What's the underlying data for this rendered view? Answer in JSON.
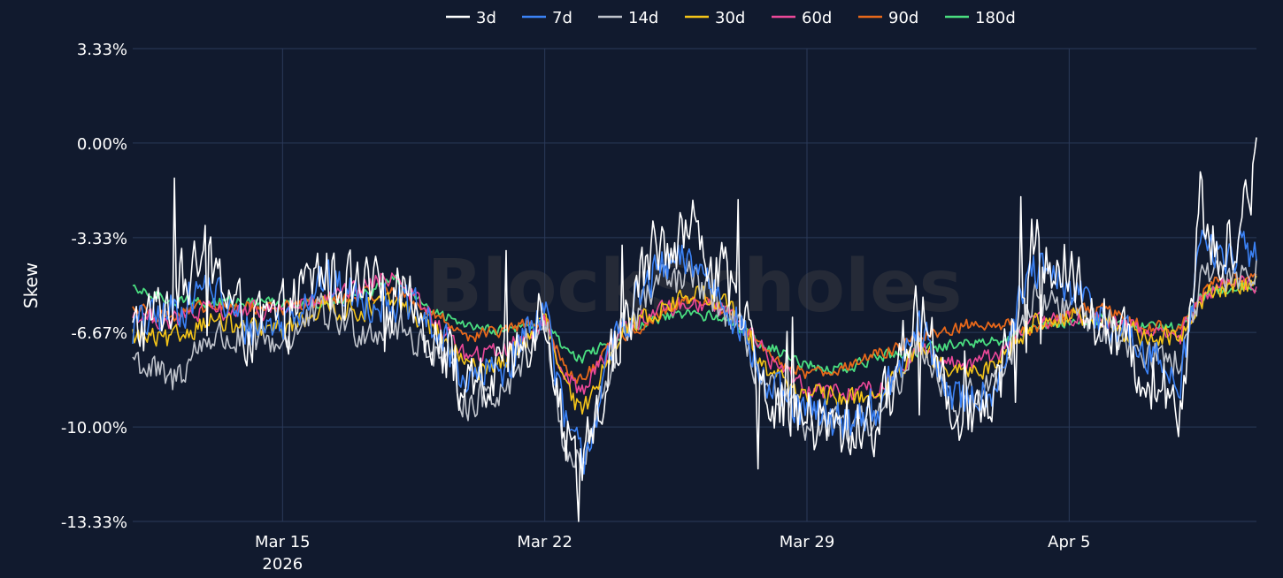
{
  "colors": {
    "background": "#111a2e",
    "grid": "#2b3a5a",
    "text": "#ffffff",
    "watermark": "#4a4a4a"
  },
  "watermark": "BlockScholes",
  "chart_data": {
    "type": "line",
    "title": "",
    "xlabel": "",
    "ylabel": "Skew",
    "x_range": [
      "2026-03-11",
      "2026-04-09"
    ],
    "y_range": [
      -13.33,
      3.33
    ],
    "grid": true,
    "legend_position": "top-center",
    "x_ticks": [
      {
        "date": "2026-03-15",
        "label": "Mar 15",
        "sublabel": "2026"
      },
      {
        "date": "2026-03-22",
        "label": "Mar 22",
        "sublabel": ""
      },
      {
        "date": "2026-03-29",
        "label": "Mar 29",
        "sublabel": ""
      },
      {
        "date": "2026-04-05",
        "label": "Apr 5",
        "sublabel": ""
      }
    ],
    "y_ticks": [
      {
        "value": 3.33,
        "label": "3.33%"
      },
      {
        "value": 0,
        "label": "0.00%"
      },
      {
        "value": -3.33,
        "label": "-3.33%"
      },
      {
        "value": -6.67,
        "label": "-6.67%"
      },
      {
        "value": -10,
        "label": "-10.00%"
      },
      {
        "value": -13.33,
        "label": "-13.33%"
      }
    ],
    "series": [
      {
        "name": "3d",
        "color": "#ffffff",
        "width": 1.6,
        "noise": 1.1,
        "points": [
          [
            "2026-03-11",
            -6.8
          ],
          [
            "2026-03-12",
            -5.5
          ],
          [
            "2026-03-13",
            -4.0
          ],
          [
            "2026-03-14",
            -6.5
          ],
          [
            "2026-03-15",
            -6.3
          ],
          [
            "2026-03-16",
            -4.5
          ],
          [
            "2026-03-17",
            -5.3
          ],
          [
            "2026-03-18",
            -5.4
          ],
          [
            "2026-03-19",
            -6.5
          ],
          [
            "2026-03-20",
            -9.0
          ],
          [
            "2026-03-21",
            -8.0
          ],
          [
            "2026-03-22",
            -5.5
          ],
          [
            "2026-03-22T12:00",
            -10.0
          ],
          [
            "2026-03-23",
            -11.8
          ],
          [
            "2026-03-24",
            -6.5
          ],
          [
            "2026-03-25",
            -3.5
          ],
          [
            "2026-03-26",
            -3.0
          ],
          [
            "2026-03-27",
            -5.5
          ],
          [
            "2026-03-28",
            -8.8
          ],
          [
            "2026-03-29",
            -9.8
          ],
          [
            "2026-03-30",
            -10.2
          ],
          [
            "2026-03-31",
            -9.6
          ],
          [
            "2026-04-01",
            -5.5
          ],
          [
            "2026-04-02",
            -9.5
          ],
          [
            "2026-04-03",
            -9.0
          ],
          [
            "2026-04-04",
            -3.5
          ],
          [
            "2026-04-05",
            -4.5
          ],
          [
            "2026-04-06",
            -6.5
          ],
          [
            "2026-04-07",
            -8.0
          ],
          [
            "2026-04-08",
            -9.0
          ],
          [
            "2026-04-08T12:00",
            -2.0
          ],
          [
            "2026-04-09",
            -4.5
          ],
          [
            "2026-04-10",
            -1.0
          ]
        ]
      },
      {
        "name": "7d",
        "color": "#3b82f6",
        "width": 1.6,
        "noise": 0.7,
        "points": [
          [
            "2026-03-11",
            -6.5
          ],
          [
            "2026-03-12",
            -6.0
          ],
          [
            "2026-03-13",
            -5.0
          ],
          [
            "2026-03-14",
            -6.5
          ],
          [
            "2026-03-15",
            -6.3
          ],
          [
            "2026-03-16",
            -4.8
          ],
          [
            "2026-03-17",
            -5.5
          ],
          [
            "2026-03-18",
            -5.5
          ],
          [
            "2026-03-19",
            -6.5
          ],
          [
            "2026-03-20",
            -8.5
          ],
          [
            "2026-03-21",
            -7.8
          ],
          [
            "2026-03-22",
            -5.5
          ],
          [
            "2026-03-22T12:00",
            -9.8
          ],
          [
            "2026-03-23",
            -11.2
          ],
          [
            "2026-03-24",
            -6.5
          ],
          [
            "2026-03-25",
            -4.5
          ],
          [
            "2026-03-26",
            -4.2
          ],
          [
            "2026-03-27",
            -5.8
          ],
          [
            "2026-03-28",
            -8.8
          ],
          [
            "2026-03-29",
            -9.6
          ],
          [
            "2026-03-30",
            -9.8
          ],
          [
            "2026-03-31",
            -9.2
          ],
          [
            "2026-04-01",
            -6.5
          ],
          [
            "2026-04-02",
            -9.2
          ],
          [
            "2026-04-03",
            -8.5
          ],
          [
            "2026-04-04",
            -4.5
          ],
          [
            "2026-04-05",
            -5.2
          ],
          [
            "2026-04-06",
            -6.2
          ],
          [
            "2026-04-07",
            -7.5
          ],
          [
            "2026-04-08",
            -8.2
          ],
          [
            "2026-04-08T12:00",
            -3.5
          ],
          [
            "2026-04-09",
            -4.0
          ],
          [
            "2026-04-10",
            -3.8
          ]
        ]
      },
      {
        "name": "14d",
        "color": "#c0c4cc",
        "width": 1.6,
        "noise": 0.6,
        "points": [
          [
            "2026-03-11",
            -7.5
          ],
          [
            "2026-03-12",
            -8.5
          ],
          [
            "2026-03-13",
            -6.8
          ],
          [
            "2026-03-14",
            -7.0
          ],
          [
            "2026-03-15",
            -7.0
          ],
          [
            "2026-03-16",
            -6.0
          ],
          [
            "2026-03-17",
            -6.5
          ],
          [
            "2026-03-18",
            -6.5
          ],
          [
            "2026-03-19",
            -7.2
          ],
          [
            "2026-03-20",
            -9.2
          ],
          [
            "2026-03-21",
            -8.5
          ],
          [
            "2026-03-22",
            -6.0
          ],
          [
            "2026-03-22T12:00",
            -10.8
          ],
          [
            "2026-03-23",
            -11.5
          ],
          [
            "2026-03-24",
            -6.8
          ],
          [
            "2026-03-25",
            -5.0
          ],
          [
            "2026-03-26",
            -4.8
          ],
          [
            "2026-03-27",
            -6.2
          ],
          [
            "2026-03-28",
            -8.8
          ],
          [
            "2026-03-29",
            -9.8
          ],
          [
            "2026-03-30",
            -10.2
          ],
          [
            "2026-03-31",
            -9.5
          ],
          [
            "2026-04-01",
            -6.8
          ],
          [
            "2026-04-02",
            -9.3
          ],
          [
            "2026-04-03",
            -8.5
          ],
          [
            "2026-04-04",
            -5.5
          ],
          [
            "2026-04-05",
            -5.8
          ],
          [
            "2026-04-06",
            -6.5
          ],
          [
            "2026-04-07",
            -7.2
          ],
          [
            "2026-04-08",
            -7.8
          ],
          [
            "2026-04-08T12:00",
            -5.0
          ],
          [
            "2026-04-09",
            -4.8
          ],
          [
            "2026-04-10",
            -4.5
          ]
        ]
      },
      {
        "name": "30d",
        "color": "#f5c518",
        "width": 1.6,
        "noise": 0.35,
        "points": [
          [
            "2026-03-11",
            -6.8
          ],
          [
            "2026-03-12",
            -7.0
          ],
          [
            "2026-03-13",
            -6.2
          ],
          [
            "2026-03-14",
            -6.6
          ],
          [
            "2026-03-15",
            -6.6
          ],
          [
            "2026-03-16",
            -5.8
          ],
          [
            "2026-03-17",
            -5.9
          ],
          [
            "2026-03-18",
            -5.6
          ],
          [
            "2026-03-19",
            -6.5
          ],
          [
            "2026-03-20",
            -8.0
          ],
          [
            "2026-03-21",
            -7.6
          ],
          [
            "2026-03-22",
            -6.2
          ],
          [
            "2026-03-22T12:00",
            -8.5
          ],
          [
            "2026-03-23",
            -9.6
          ],
          [
            "2026-03-24",
            -6.6
          ],
          [
            "2026-03-25",
            -5.9
          ],
          [
            "2026-03-26",
            -5.3
          ],
          [
            "2026-03-27",
            -5.8
          ],
          [
            "2026-03-28",
            -8.0
          ],
          [
            "2026-03-29",
            -8.9
          ],
          [
            "2026-03-30",
            -9.0
          ],
          [
            "2026-03-31",
            -8.8
          ],
          [
            "2026-04-01",
            -7.3
          ],
          [
            "2026-04-02",
            -8.2
          ],
          [
            "2026-04-03",
            -7.8
          ],
          [
            "2026-04-04",
            -6.3
          ],
          [
            "2026-04-05",
            -6.1
          ],
          [
            "2026-04-06",
            -6.4
          ],
          [
            "2026-04-07",
            -6.8
          ],
          [
            "2026-04-08",
            -6.9
          ],
          [
            "2026-04-08T12:00",
            -5.5
          ],
          [
            "2026-04-09",
            -5.2
          ],
          [
            "2026-04-10",
            -4.9
          ]
        ]
      },
      {
        "name": "60d",
        "color": "#ec4899",
        "width": 1.6,
        "noise": 0.3,
        "points": [
          [
            "2026-03-11",
            -6.0
          ],
          [
            "2026-03-12",
            -6.3
          ],
          [
            "2026-03-13",
            -5.9
          ],
          [
            "2026-03-14",
            -6.0
          ],
          [
            "2026-03-15",
            -5.8
          ],
          [
            "2026-03-16",
            -5.6
          ],
          [
            "2026-03-17",
            -5.2
          ],
          [
            "2026-03-18",
            -4.6
          ],
          [
            "2026-03-19",
            -6.2
          ],
          [
            "2026-03-20",
            -7.6
          ],
          [
            "2026-03-21",
            -7.2
          ],
          [
            "2026-03-22",
            -6.3
          ],
          [
            "2026-03-22T12:00",
            -8.0
          ],
          [
            "2026-03-23",
            -8.8
          ],
          [
            "2026-03-24",
            -6.6
          ],
          [
            "2026-03-25",
            -5.9
          ],
          [
            "2026-03-26",
            -5.6
          ],
          [
            "2026-03-27",
            -5.9
          ],
          [
            "2026-03-28",
            -7.6
          ],
          [
            "2026-03-29",
            -8.6
          ],
          [
            "2026-03-30",
            -8.8
          ],
          [
            "2026-03-31",
            -8.6
          ],
          [
            "2026-04-01",
            -7.2
          ],
          [
            "2026-04-02",
            -7.8
          ],
          [
            "2026-04-03",
            -7.5
          ],
          [
            "2026-04-04",
            -6.4
          ],
          [
            "2026-04-05",
            -6.2
          ],
          [
            "2026-04-06",
            -6.3
          ],
          [
            "2026-04-07",
            -6.6
          ],
          [
            "2026-04-08",
            -6.8
          ],
          [
            "2026-04-08T12:00",
            -5.6
          ],
          [
            "2026-04-09",
            -5.0
          ],
          [
            "2026-04-10",
            -5.0
          ]
        ]
      },
      {
        "name": "90d",
        "color": "#e8681a",
        "width": 1.8,
        "noise": 0.22,
        "points": [
          [
            "2026-03-11",
            -5.8
          ],
          [
            "2026-03-12",
            -6.1
          ],
          [
            "2026-03-13",
            -5.8
          ],
          [
            "2026-03-14",
            -5.8
          ],
          [
            "2026-03-15",
            -5.8
          ],
          [
            "2026-03-16",
            -5.6
          ],
          [
            "2026-03-17",
            -5.4
          ],
          [
            "2026-03-18",
            -5.2
          ],
          [
            "2026-03-19",
            -6.0
          ],
          [
            "2026-03-20",
            -6.8
          ],
          [
            "2026-03-21",
            -6.6
          ],
          [
            "2026-03-22",
            -6.2
          ],
          [
            "2026-03-22T12:00",
            -7.8
          ],
          [
            "2026-03-23",
            -8.4
          ],
          [
            "2026-03-24",
            -6.8
          ],
          [
            "2026-03-25",
            -6.2
          ],
          [
            "2026-03-26",
            -5.4
          ],
          [
            "2026-03-27",
            -6.0
          ],
          [
            "2026-03-28",
            -7.6
          ],
          [
            "2026-03-29",
            -8.1
          ],
          [
            "2026-03-30",
            -7.9
          ],
          [
            "2026-03-31",
            -7.4
          ],
          [
            "2026-04-01",
            -6.8
          ],
          [
            "2026-04-02",
            -6.5
          ],
          [
            "2026-04-03",
            -6.3
          ],
          [
            "2026-04-04",
            -6.6
          ],
          [
            "2026-04-05",
            -6.0
          ],
          [
            "2026-04-06",
            -5.9
          ],
          [
            "2026-04-07",
            -6.5
          ],
          [
            "2026-04-08",
            -6.5
          ],
          [
            "2026-04-08T12:00",
            -5.4
          ],
          [
            "2026-04-09",
            -4.8
          ],
          [
            "2026-04-10",
            -4.6
          ]
        ]
      },
      {
        "name": "180d",
        "color": "#4ade80",
        "width": 1.8,
        "noise": 0.18,
        "points": [
          [
            "2026-03-11",
            -5.2
          ],
          [
            "2026-03-12",
            -5.5
          ],
          [
            "2026-03-13",
            -5.6
          ],
          [
            "2026-03-14",
            -5.6
          ],
          [
            "2026-03-15",
            -5.6
          ],
          [
            "2026-03-16",
            -5.6
          ],
          [
            "2026-03-17",
            -5.4
          ],
          [
            "2026-03-18",
            -4.8
          ],
          [
            "2026-03-19",
            -6.0
          ],
          [
            "2026-03-20",
            -6.4
          ],
          [
            "2026-03-21",
            -6.6
          ],
          [
            "2026-03-22",
            -6.3
          ],
          [
            "2026-03-22T12:00",
            -7.2
          ],
          [
            "2026-03-23",
            -7.6
          ],
          [
            "2026-03-24",
            -6.8
          ],
          [
            "2026-03-25",
            -6.2
          ],
          [
            "2026-03-26",
            -6.0
          ],
          [
            "2026-03-27",
            -6.3
          ],
          [
            "2026-03-28",
            -7.2
          ],
          [
            "2026-03-29",
            -7.8
          ],
          [
            "2026-03-30",
            -8.0
          ],
          [
            "2026-03-31",
            -7.5
          ],
          [
            "2026-04-01",
            -7.3
          ],
          [
            "2026-04-02",
            -7.1
          ],
          [
            "2026-04-03",
            -7.0
          ],
          [
            "2026-04-04",
            -6.5
          ],
          [
            "2026-04-05",
            -6.3
          ],
          [
            "2026-04-06",
            -6.2
          ],
          [
            "2026-04-07",
            -6.4
          ],
          [
            "2026-04-08",
            -6.5
          ],
          [
            "2026-04-08T12:00",
            -5.4
          ],
          [
            "2026-04-09",
            -5.2
          ],
          [
            "2026-04-10",
            -5.0
          ]
        ]
      }
    ]
  }
}
